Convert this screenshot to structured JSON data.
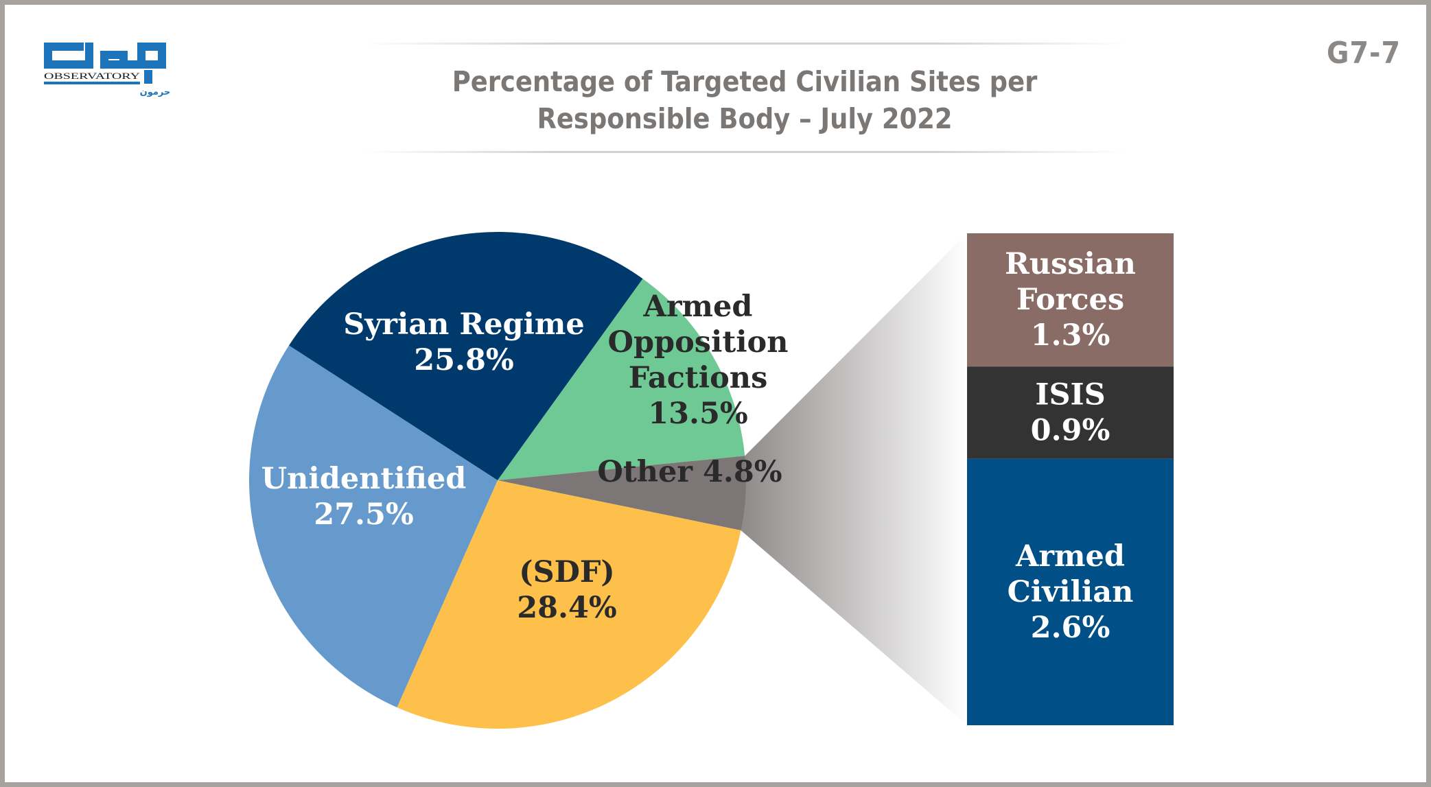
{
  "header": {
    "title_line1": "Percentage of Targeted Civilian Sites per",
    "title_line2": "Responsible Body – July 2022",
    "page_code": "G7-7"
  },
  "logo": {
    "name_en": "OBSERVATORY",
    "sub_ar": "حرمون"
  },
  "colors": {
    "syrian_regime": "#003a6d",
    "armed_opposition": "#6fc995",
    "other": "#7d7677",
    "sdf": "#fdc04a",
    "unidentified": "#6699cc",
    "russian_forces": "#8a6c66",
    "isis": "#333333",
    "armed_civilian": "#004f87",
    "logo_blue": "#1d74bb"
  },
  "chart_data": {
    "type": "pie",
    "slices": [
      {
        "name": "Syrian Regime",
        "value": 25.8,
        "label": "25.8%",
        "color_key": "syrian_regime"
      },
      {
        "name": "Armed Opposition Factions",
        "value": 13.5,
        "label": "13.5%",
        "color_key": "armed_opposition"
      },
      {
        "name": "Other",
        "value": 4.8,
        "label": "4.8%",
        "color_key": "other"
      },
      {
        "name": "(SDF)",
        "value": 28.4,
        "label": "28.4%",
        "color_key": "sdf"
      },
      {
        "name": "Unidentified",
        "value": 27.5,
        "label": "27.5%",
        "color_key": "unidentified"
      }
    ],
    "breakdown": {
      "of": "Other",
      "type": "stacked-bar",
      "items": [
        {
          "name": "Russian Forces",
          "value": 1.3,
          "label": "1.3%",
          "color_key": "russian_forces"
        },
        {
          "name": "ISIS",
          "value": 0.9,
          "label": "0.9%",
          "color_key": "isis"
        },
        {
          "name": "Armed Civilian",
          "value": 2.6,
          "label": "2.6%",
          "color_key": "armed_civilian"
        }
      ]
    }
  }
}
